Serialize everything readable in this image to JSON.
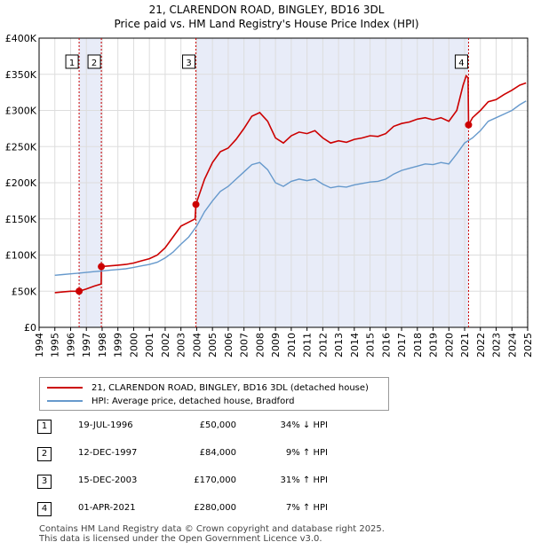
{
  "chart_data": {
    "type": "line",
    "title": "21, CLARENDON ROAD, BINGLEY, BD16 3DL",
    "subtitle": "Price paid vs. HM Land Registry's House Price Index (HPI)",
    "xlim": [
      1994,
      2025
    ],
    "ylim": [
      0,
      400000
    ],
    "x_ticks": [
      "1994",
      "1995",
      "1996",
      "1997",
      "1998",
      "1999",
      "2000",
      "2001",
      "2002",
      "2003",
      "2004",
      "2005",
      "2006",
      "2007",
      "2008",
      "2009",
      "2010",
      "2011",
      "2012",
      "2013",
      "2014",
      "2015",
      "2016",
      "2017",
      "2018",
      "2019",
      "2020",
      "2021",
      "2022",
      "2023",
      "2024",
      "2025"
    ],
    "y_ticks": [
      {
        "value": 0,
        "label": "£0"
      },
      {
        "value": 50000,
        "label": "£50K"
      },
      {
        "value": 100000,
        "label": "£100K"
      },
      {
        "value": 150000,
        "label": "£150K"
      },
      {
        "value": 200000,
        "label": "£200K"
      },
      {
        "value": 250000,
        "label": "£250K"
      },
      {
        "value": 300000,
        "label": "£300K"
      },
      {
        "value": 350000,
        "label": "£350K"
      },
      {
        "value": 400000,
        "label": "£400K"
      }
    ],
    "grid": true,
    "series": [
      {
        "name": "21, CLARENDON ROAD, BINGLEY, BD16 3DL (detached house)",
        "color": "#cc0000",
        "points": [
          [
            1995.0,
            48000
          ],
          [
            1995.5,
            49000
          ],
          [
            1996.0,
            50000
          ],
          [
            1996.54,
            50000
          ],
          [
            1997.0,
            53000
          ],
          [
            1997.5,
            57000
          ],
          [
            1997.94,
            60000
          ],
          [
            1997.95,
            84000
          ],
          [
            1998.5,
            85000
          ],
          [
            1999.0,
            86000
          ],
          [
            1999.5,
            87000
          ],
          [
            2000.0,
            89000
          ],
          [
            2000.5,
            92000
          ],
          [
            2001.0,
            95000
          ],
          [
            2001.5,
            100000
          ],
          [
            2002.0,
            110000
          ],
          [
            2002.5,
            125000
          ],
          [
            2003.0,
            140000
          ],
          [
            2003.9,
            150000
          ],
          [
            2003.95,
            170000
          ],
          [
            2004.5,
            205000
          ],
          [
            2005.0,
            228000
          ],
          [
            2005.5,
            243000
          ],
          [
            2006.0,
            248000
          ],
          [
            2006.5,
            260000
          ],
          [
            2007.0,
            275000
          ],
          [
            2007.5,
            292000
          ],
          [
            2008.0,
            297000
          ],
          [
            2008.5,
            285000
          ],
          [
            2009.0,
            262000
          ],
          [
            2009.5,
            255000
          ],
          [
            2010.0,
            265000
          ],
          [
            2010.5,
            270000
          ],
          [
            2011.0,
            268000
          ],
          [
            2011.5,
            272000
          ],
          [
            2012.0,
            262000
          ],
          [
            2012.5,
            255000
          ],
          [
            2013.0,
            258000
          ],
          [
            2013.5,
            256000
          ],
          [
            2014.0,
            260000
          ],
          [
            2014.5,
            262000
          ],
          [
            2015.0,
            265000
          ],
          [
            2015.5,
            264000
          ],
          [
            2016.0,
            268000
          ],
          [
            2016.5,
            278000
          ],
          [
            2017.0,
            282000
          ],
          [
            2017.5,
            284000
          ],
          [
            2018.0,
            288000
          ],
          [
            2018.5,
            290000
          ],
          [
            2019.0,
            287000
          ],
          [
            2019.5,
            290000
          ],
          [
            2020.0,
            285000
          ],
          [
            2020.5,
            300000
          ],
          [
            2020.9,
            335000
          ],
          [
            2021.1,
            348000
          ],
          [
            2021.22,
            345000
          ],
          [
            2021.25,
            280000
          ],
          [
            2021.5,
            290000
          ],
          [
            2022.0,
            300000
          ],
          [
            2022.5,
            312000
          ],
          [
            2023.0,
            315000
          ],
          [
            2023.5,
            322000
          ],
          [
            2024.0,
            328000
          ],
          [
            2024.5,
            335000
          ],
          [
            2024.9,
            338000
          ]
        ]
      },
      {
        "name": "HPI: Average price, detached house, Bradford",
        "color": "#6699cc",
        "points": [
          [
            1995.0,
            72000
          ],
          [
            1995.5,
            73000
          ],
          [
            1996.0,
            74000
          ],
          [
            1996.5,
            75000
          ],
          [
            1997.0,
            76000
          ],
          [
            1997.5,
            77000
          ],
          [
            1998.0,
            78000
          ],
          [
            1998.5,
            79000
          ],
          [
            1999.0,
            80000
          ],
          [
            1999.5,
            81000
          ],
          [
            2000.0,
            83000
          ],
          [
            2000.5,
            85000
          ],
          [
            2001.0,
            87000
          ],
          [
            2001.5,
            90000
          ],
          [
            2002.0,
            96000
          ],
          [
            2002.5,
            104000
          ],
          [
            2003.0,
            115000
          ],
          [
            2003.5,
            125000
          ],
          [
            2004.0,
            140000
          ],
          [
            2004.5,
            160000
          ],
          [
            2005.0,
            175000
          ],
          [
            2005.5,
            188000
          ],
          [
            2006.0,
            195000
          ],
          [
            2006.5,
            205000
          ],
          [
            2007.0,
            215000
          ],
          [
            2007.5,
            225000
          ],
          [
            2008.0,
            228000
          ],
          [
            2008.5,
            218000
          ],
          [
            2009.0,
            200000
          ],
          [
            2009.5,
            195000
          ],
          [
            2010.0,
            202000
          ],
          [
            2010.5,
            205000
          ],
          [
            2011.0,
            203000
          ],
          [
            2011.5,
            205000
          ],
          [
            2012.0,
            198000
          ],
          [
            2012.5,
            193000
          ],
          [
            2013.0,
            195000
          ],
          [
            2013.5,
            194000
          ],
          [
            2014.0,
            197000
          ],
          [
            2014.5,
            199000
          ],
          [
            2015.0,
            201000
          ],
          [
            2015.5,
            202000
          ],
          [
            2016.0,
            205000
          ],
          [
            2016.5,
            212000
          ],
          [
            2017.0,
            217000
          ],
          [
            2017.5,
            220000
          ],
          [
            2018.0,
            223000
          ],
          [
            2018.5,
            226000
          ],
          [
            2019.0,
            225000
          ],
          [
            2019.5,
            228000
          ],
          [
            2020.0,
            226000
          ],
          [
            2020.5,
            240000
          ],
          [
            2021.0,
            255000
          ],
          [
            2021.5,
            262000
          ],
          [
            2022.0,
            272000
          ],
          [
            2022.5,
            285000
          ],
          [
            2023.0,
            290000
          ],
          [
            2023.5,
            295000
          ],
          [
            2024.0,
            300000
          ],
          [
            2024.5,
            308000
          ],
          [
            2024.9,
            313000
          ]
        ]
      }
    ],
    "sales": [
      {
        "num": "1",
        "date": "19-JUL-1996",
        "year": 1996.54,
        "price": 50000,
        "price_label": "£50,000",
        "hpi": "34% ↓ HPI"
      },
      {
        "num": "2",
        "date": "12-DEC-1997",
        "year": 1997.95,
        "price": 84000,
        "price_label": "£84,000",
        "hpi": "9% ↑ HPI"
      },
      {
        "num": "3",
        "date": "15-DEC-2003",
        "year": 2003.95,
        "price": 170000,
        "price_label": "£170,000",
        "hpi": "31% ↑ HPI"
      },
      {
        "num": "4",
        "date": "01-APR-2021",
        "year": 2021.25,
        "price": 280000,
        "price_label": "£280,000",
        "hpi": "7% ↑ HPI"
      }
    ],
    "legend": [
      {
        "label": "21, CLARENDON ROAD, BINGLEY, BD16 3DL (detached house)",
        "color": "#cc0000"
      },
      {
        "label": "HPI: Average price, detached house, Bradford",
        "color": "#6699cc"
      }
    ]
  },
  "footer": {
    "line1": "Contains HM Land Registry data © Crown copyright and database right 2025.",
    "line2": "This data is licensed under the Open Government Licence v3.0."
  }
}
